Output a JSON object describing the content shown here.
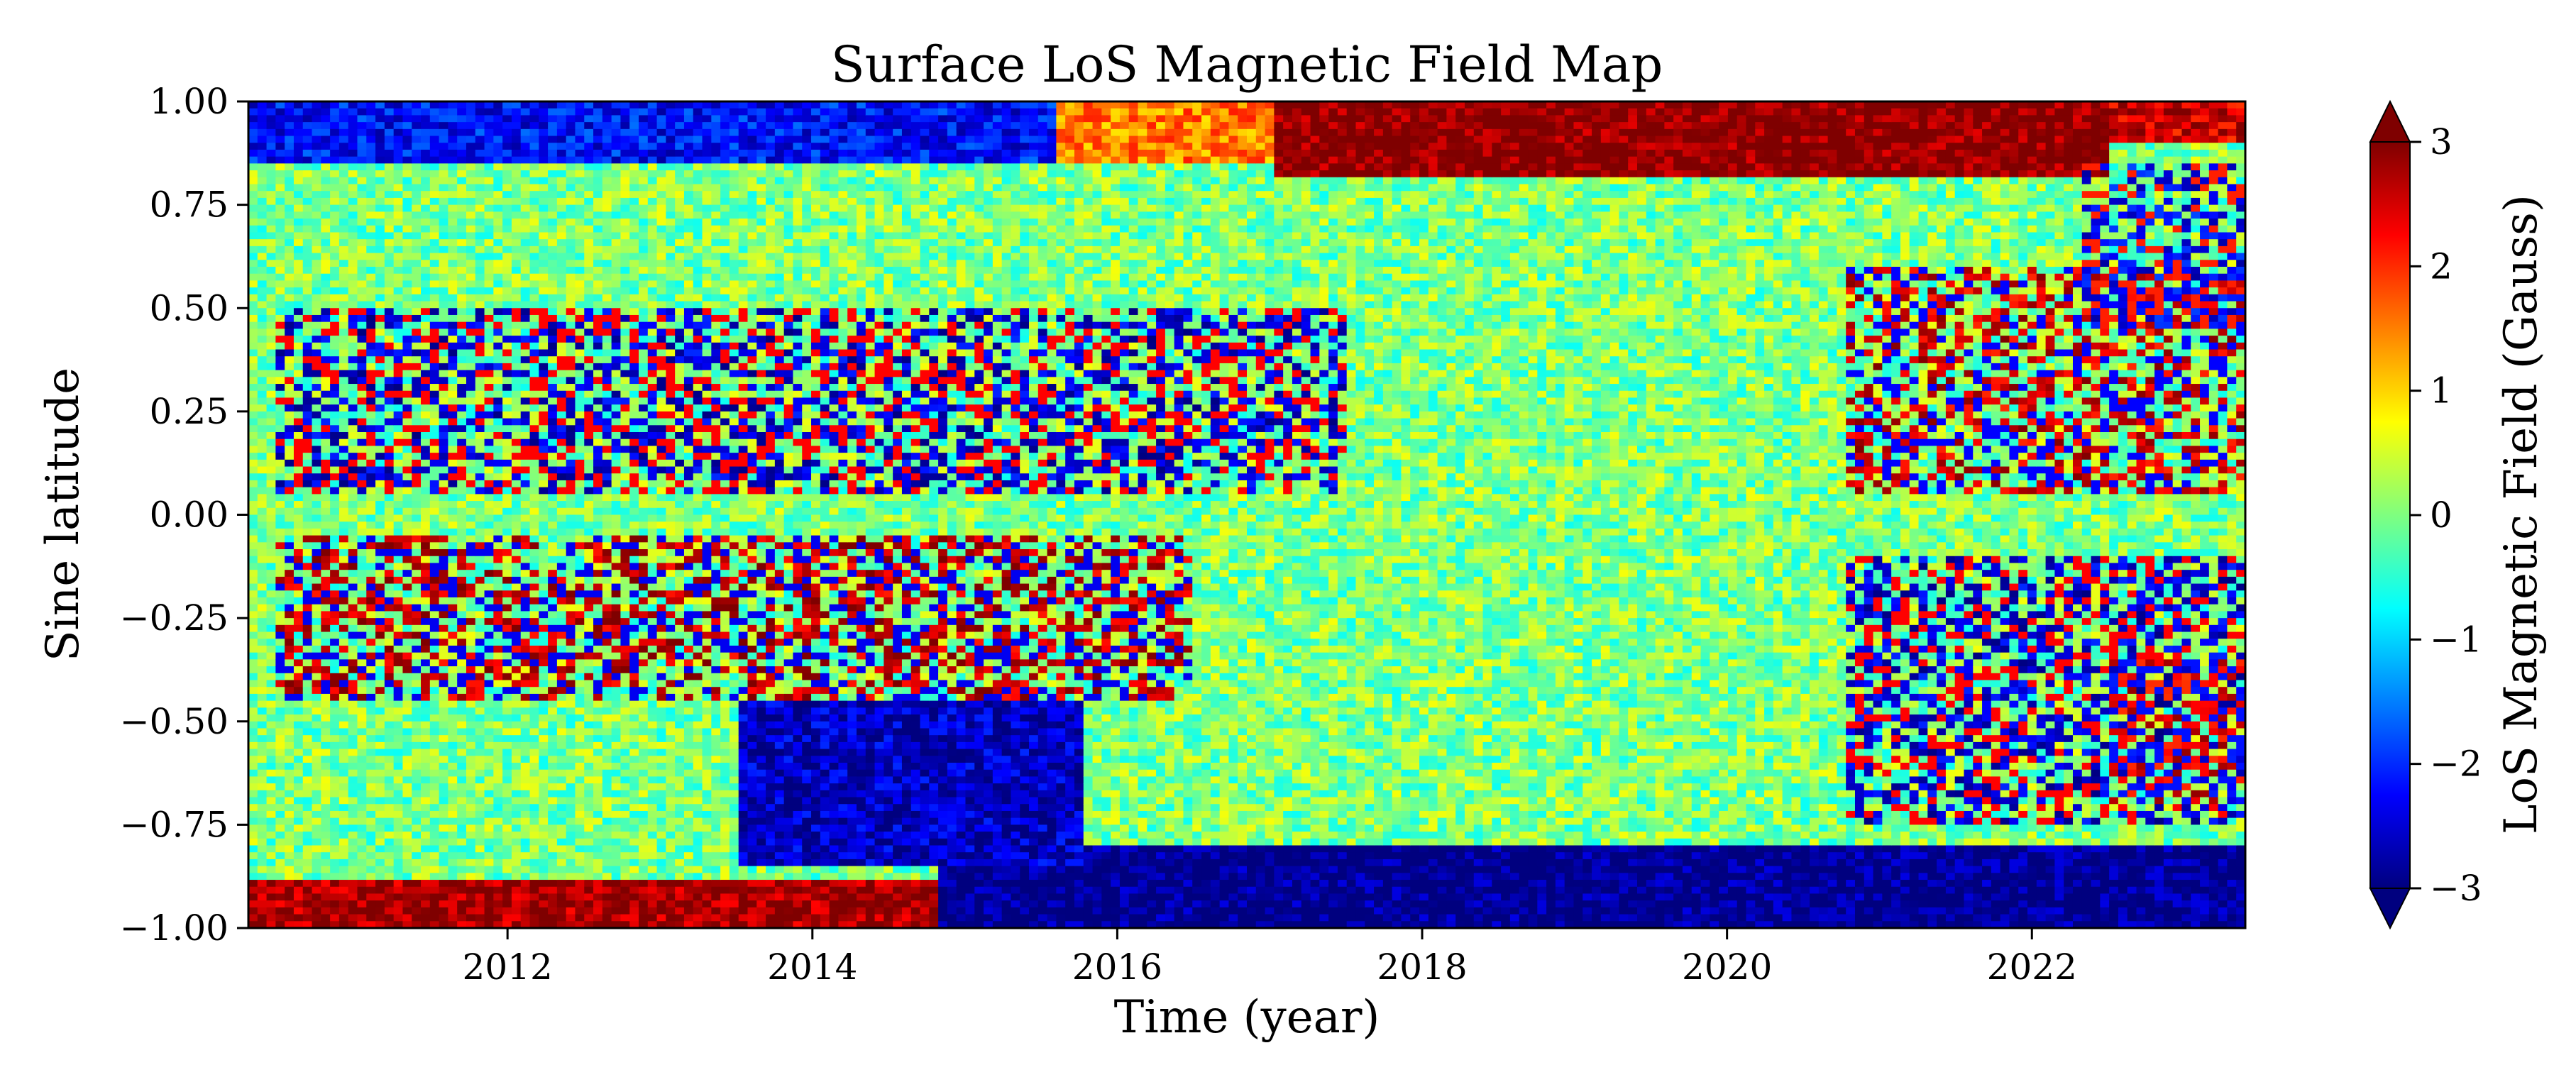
{
  "chart_data": {
    "type": "heatmap",
    "title": "Surface LoS Magnetic Field Map",
    "xlabel": "Time (year)",
    "ylabel": "Sine latitude",
    "xlim": [
      2010.3,
      2023.4
    ],
    "ylim": [
      -1.0,
      1.0
    ],
    "x_ticks": [
      2012,
      2014,
      2016,
      2018,
      2020,
      2022
    ],
    "x_tick_labels": [
      "2012",
      "2014",
      "2016",
      "2018",
      "2020",
      "2022"
    ],
    "y_ticks": [
      1.0,
      0.75,
      0.5,
      0.25,
      0.0,
      -0.25,
      -0.5,
      -0.75,
      -1.0
    ],
    "y_tick_labels": [
      "1.00",
      "0.75",
      "0.50",
      "0.25",
      "0.00",
      "−0.25",
      "−0.50",
      "−0.75",
      "−1.00"
    ],
    "colorbar": {
      "label": "LoS Magnetic Field (Gauss)",
      "range": [
        -3,
        3
      ],
      "ticks": [
        3,
        2,
        1,
        0,
        -1,
        -2,
        -3
      ],
      "tick_labels": [
        "3",
        "2",
        "1",
        "0",
        "−1",
        "−2",
        "−3"
      ],
      "extend": "both",
      "colormap": "jet",
      "colors": [
        "#00007f",
        "#0000ff",
        "#007fff",
        "#00ffff",
        "#7fff7f",
        "#ffff00",
        "#ff7f00",
        "#ff0000",
        "#7f0000"
      ]
    },
    "features": [
      {
        "t0": 2010.3,
        "t1": 2015.6,
        "s0": 0.85,
        "s1": 1.0,
        "value": -2.2
      },
      {
        "t0": 2015.6,
        "t1": 2017.0,
        "s0": 0.85,
        "s1": 1.0,
        "value": 1.5
      },
      {
        "t0": 2017.0,
        "t1": 2022.5,
        "s0": 0.82,
        "s1": 1.0,
        "value": 3.0
      },
      {
        "t0": 2022.5,
        "t1": 2023.4,
        "s0": 0.9,
        "s1": 1.0,
        "value": 2.5
      },
      {
        "t0": 2010.3,
        "t1": 2014.8,
        "s0": -1.0,
        "s1": -0.88,
        "value": 2.8
      },
      {
        "t0": 2014.8,
        "t1": 2023.4,
        "s0": -1.0,
        "s1": -0.8,
        "value": -3.0
      },
      {
        "t0": 2013.5,
        "t1": 2015.8,
        "s0": -0.85,
        "s1": -0.45,
        "value": -2.6
      },
      {
        "t0": 2010.5,
        "t1": 2017.5,
        "s0": 0.05,
        "s1": 0.5,
        "value": -2.5,
        "mottled": true
      },
      {
        "t0": 2010.5,
        "t1": 2016.5,
        "s0": -0.45,
        "s1": -0.05,
        "value": 2.6,
        "mottled": true
      },
      {
        "t0": 2020.8,
        "t1": 2023.4,
        "s0": 0.05,
        "s1": 0.6,
        "value": 2.5,
        "mottled": true
      },
      {
        "t0": 2020.8,
        "t1": 2023.4,
        "s0": -0.75,
        "s1": -0.1,
        "value": -2.5,
        "mottled": true
      },
      {
        "t0": 2022.3,
        "t1": 2023.4,
        "s0": 0.45,
        "s1": 0.85,
        "value": -2.3,
        "mottled": true
      },
      {
        "t0": 2022.5,
        "t1": 2023.4,
        "s0": -0.7,
        "s1": -0.35,
        "value": 2.4,
        "mottled": true
      }
    ]
  }
}
